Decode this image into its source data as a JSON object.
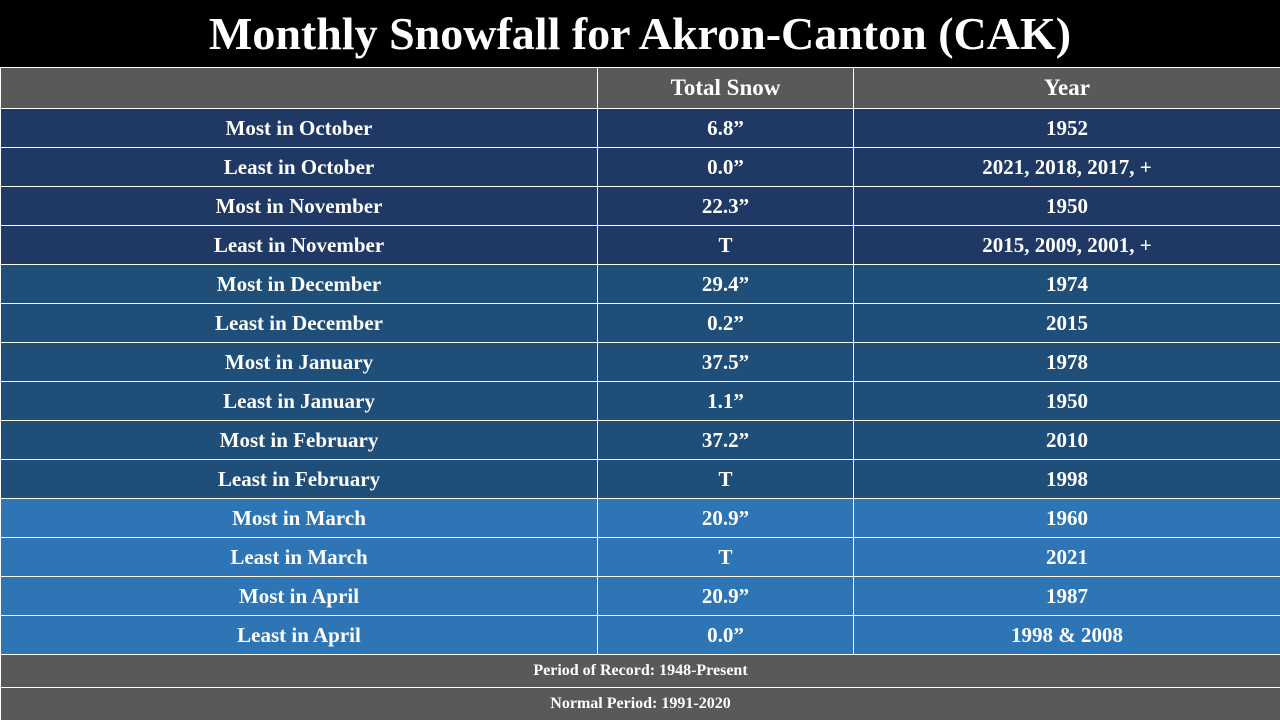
{
  "title": "Monthly Snowfall for Akron-Canton (CAK)",
  "columns": [
    "",
    "Total Snow",
    "Year"
  ],
  "colors": {
    "header": "#595959",
    "fall": "#203864",
    "winter": "#1f4e79",
    "spring": "#2e75b6"
  },
  "rows": [
    {
      "label": "Most in October",
      "snow": "6.8”",
      "year": "1952",
      "group": "fall"
    },
    {
      "label": "Least in October",
      "snow": "0.0”",
      "year": "2021, 2018, 2017, +",
      "group": "fall"
    },
    {
      "label": "Most in November",
      "snow": "22.3”",
      "year": "1950",
      "group": "fall"
    },
    {
      "label": "Least in November",
      "snow": "T",
      "year": "2015, 2009, 2001, +",
      "group": "fall"
    },
    {
      "label": "Most in December",
      "snow": "29.4”",
      "year": "1974",
      "group": "winter"
    },
    {
      "label": "Least in December",
      "snow": "0.2”",
      "year": "2015",
      "group": "winter"
    },
    {
      "label": "Most in January",
      "snow": "37.5”",
      "year": "1978",
      "group": "winter"
    },
    {
      "label": "Least in January",
      "snow": "1.1”",
      "year": "1950",
      "group": "winter"
    },
    {
      "label": "Most in February",
      "snow": "37.2”",
      "year": "2010",
      "group": "winter"
    },
    {
      "label": "Least in February",
      "snow": "T",
      "year": "1998",
      "group": "winter"
    },
    {
      "label": "Most in March",
      "snow": "20.9”",
      "year": "1960",
      "group": "spring"
    },
    {
      "label": "Least in March",
      "snow": "T",
      "year": "2021",
      "group": "spring"
    },
    {
      "label": "Most in April",
      "snow": "20.9”",
      "year": "1987",
      "group": "spring"
    },
    {
      "label": "Least in April",
      "snow": "0.0”",
      "year": "1998 & 2008",
      "group": "spring"
    }
  ],
  "footer": {
    "period_of_record": "Period of Record: 1948-Present",
    "normal_period": "Normal Period: 1991-2020"
  }
}
